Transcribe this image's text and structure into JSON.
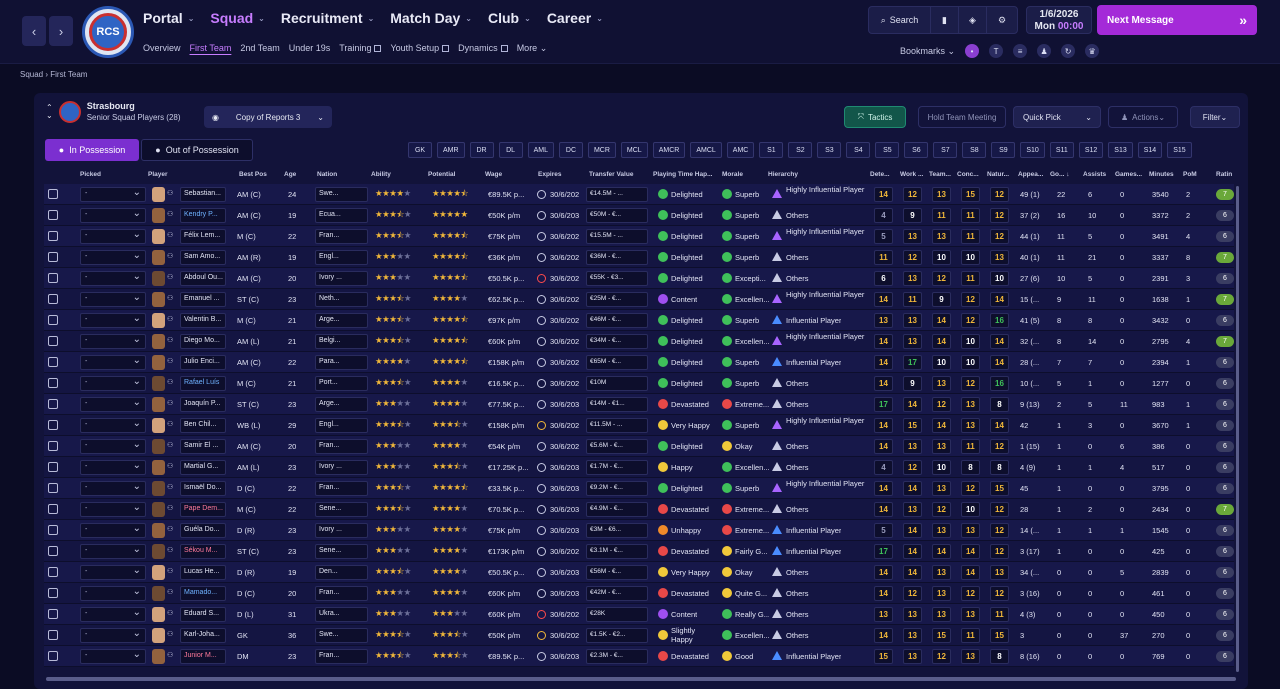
{
  "nav": {
    "back": "‹",
    "forward": "›",
    "badge": "RCS",
    "items": [
      {
        "label": "Portal",
        "active": false
      },
      {
        "label": "Squad",
        "active": true
      },
      {
        "label": "Recruitment",
        "active": false
      },
      {
        "label": "Match Day",
        "active": false
      },
      {
        "label": "Club",
        "active": false
      },
      {
        "label": "Career",
        "active": false
      }
    ],
    "sub": [
      {
        "label": "Overview"
      },
      {
        "label": "First Team",
        "active": true
      },
      {
        "label": "2nd Team"
      },
      {
        "label": "Under 19s"
      },
      {
        "label": "Training",
        "ext": true
      },
      {
        "label": "Youth Setup",
        "ext": true
      },
      {
        "label": "Dynamics",
        "ext": true
      },
      {
        "label": "More ⌄"
      }
    ]
  },
  "toolbar": {
    "search": "Search",
    "date": "1/6/2026",
    "day": "Mon",
    "time": "00:00",
    "next_message": "Next Message",
    "bookmarks": "Bookmarks"
  },
  "breadcrumb": "Squad › First Team",
  "team": {
    "name": "Strasbourg",
    "subtitle": "Senior Squad Players (28)",
    "view": "Copy of Reports 3"
  },
  "buttons": {
    "tactics": "Tactics",
    "meeting": "Hold Team Meeting",
    "quick_pick": "Quick Pick",
    "actions": "Actions",
    "filter": "Filter"
  },
  "possession": {
    "in": "In Possession",
    "out": "Out of Possession"
  },
  "positions": [
    "GK",
    "AMR",
    "DR",
    "DL",
    "AML",
    "DC",
    "MCR",
    "MCL",
    "AMCR",
    "AMCL",
    "AMC",
    "S1",
    "S2",
    "S3",
    "S4",
    "S5",
    "S6",
    "S7",
    "S8",
    "S9",
    "S10",
    "S11",
    "S12",
    "S13",
    "S14",
    "S15"
  ],
  "columns": {
    "picked": "Picked",
    "player": "Player",
    "best_pos": "Best Pos",
    "age": "Age",
    "nation": "Nation",
    "ability": "Ability",
    "potential": "Potential",
    "wage": "Wage",
    "expires": "Expires",
    "transfer": "Transfer Value",
    "playing_time": "Playing Time Hap...",
    "morale": "Morale",
    "hierarchy": "Hierarchy",
    "det": "Dete...",
    "work": "Work ...",
    "team": "Team...",
    "conc": "Conc...",
    "nat": "Natur...",
    "apps": "Appea...",
    "goals": "Go... ↓",
    "assists": "Assists",
    "games": "Games...",
    "minutes": "Minutes",
    "pom": "PoM",
    "rating": "Ratin"
  },
  "players": [
    {
      "picked": "-",
      "name": "Sebastian...",
      "style": "",
      "pos": "AM (C)",
      "age": "24",
      "nation": "Swe...",
      "ab": 4,
      "pot": 4.5,
      "wage": "€89.5K p...",
      "exp": "30/6/202",
      "exp_c": "",
      "tv": "€14.5M - ...",
      "pt": "Delighted",
      "pt_c": "g",
      "mor": "Superb",
      "mor_c": "g",
      "hier": "Highly Influential Player",
      "hier_c": "pu",
      "det": "14",
      "work": "12",
      "team": "13",
      "conc": "15",
      "nat": "12",
      "apps": "49 (1)",
      "goals": "22",
      "assists": "6",
      "games": "0",
      "minutes": "3540",
      "pom": "2",
      "rating": "7",
      "rate_g": true
    },
    {
      "picked": "-",
      "name": "Kendry P...",
      "style": "loan",
      "pos": "AM (C)",
      "age": "19",
      "nation": "Ecua...",
      "ab": 3.5,
      "pot": 5,
      "wage": "€50K p/m",
      "exp": "30/6/203",
      "exp_c": "",
      "tv": "€50M - €...",
      "pt": "Delighted",
      "pt_c": "g",
      "mor": "Superb",
      "mor_c": "g",
      "hier": "Others",
      "hier_c": "",
      "det": "4",
      "work": "9",
      "team": "11",
      "conc": "11",
      "nat": "12",
      "apps": "37 (2)",
      "goals": "16",
      "assists": "10",
      "games": "0",
      "minutes": "3372",
      "pom": "2",
      "rating": "6",
      "rate_g": false
    },
    {
      "picked": "-",
      "name": "Félix Lem...",
      "style": "",
      "pos": "M (C)",
      "age": "22",
      "nation": "Fran...",
      "ab": 3.5,
      "pot": 4.5,
      "wage": "€75K p/m",
      "exp": "30/6/202",
      "exp_c": "",
      "tv": "€15.5M - ...",
      "pt": "Delighted",
      "pt_c": "g",
      "mor": "Superb",
      "mor_c": "g",
      "hier": "Highly Influential Player",
      "hier_c": "pu",
      "det": "5",
      "work": "13",
      "team": "13",
      "conc": "11",
      "nat": "12",
      "apps": "44 (1)",
      "goals": "11",
      "assists": "5",
      "games": "0",
      "minutes": "3491",
      "pom": "4",
      "rating": "6",
      "rate_g": false
    },
    {
      "picked": "-",
      "name": "Sam Amo...",
      "style": "",
      "pos": "AM (R)",
      "age": "19",
      "nation": "Engl...",
      "ab": 3,
      "pot": 4.5,
      "wage": "€36K p/m",
      "exp": "30/6/202",
      "exp_c": "",
      "tv": "€36M - €...",
      "pt": "Delighted",
      "pt_c": "g",
      "mor": "Superb",
      "mor_c": "g",
      "hier": "Others",
      "hier_c": "",
      "det": "11",
      "work": "12",
      "team": "10",
      "conc": "10",
      "nat": "13",
      "apps": "40 (1)",
      "goals": "11",
      "assists": "21",
      "games": "0",
      "minutes": "3337",
      "pom": "8",
      "rating": "7",
      "rate_g": true
    },
    {
      "picked": "-",
      "name": "Abdoul Ou...",
      "style": "",
      "pos": "AM (C)",
      "age": "20",
      "nation": "Ivory ...",
      "ab": 3,
      "pot": 4.5,
      "wage": "€50.5K p...",
      "exp": "30/6/202",
      "exp_c": "r",
      "tv": "€55K - €3...",
      "pt": "Delighted",
      "pt_c": "g",
      "mor": "Excepti...",
      "mor_c": "g",
      "hier": "Others",
      "hier_c": "",
      "det": "6",
      "work": "13",
      "team": "12",
      "conc": "11",
      "nat": "10",
      "apps": "27 (6)",
      "goals": "10",
      "assists": "5",
      "games": "0",
      "minutes": "2391",
      "pom": "3",
      "rating": "6",
      "rate_g": false
    },
    {
      "picked": "-",
      "name": "Emanuel ...",
      "style": "",
      "pos": "ST (C)",
      "age": "23",
      "nation": "Neth...",
      "ab": 3.5,
      "pot": 4,
      "wage": "€62.5K p...",
      "exp": "30/6/202",
      "exp_c": "",
      "tv": "€25M - €...",
      "pt": "Content",
      "pt_c": "pu",
      "mor": "Excellen...",
      "mor_c": "g",
      "hier": "Highly Influential Player",
      "hier_c": "pu",
      "det": "14",
      "work": "11",
      "team": "9",
      "conc": "12",
      "nat": "14",
      "apps": "15 (...",
      "goals": "9",
      "assists": "11",
      "games": "0",
      "minutes": "1638",
      "pom": "1",
      "rating": "7",
      "rate_g": true
    },
    {
      "picked": "-",
      "name": "Valentin B...",
      "style": "",
      "pos": "M (C)",
      "age": "21",
      "nation": "Arge...",
      "ab": 3.5,
      "pot": 4.5,
      "wage": "€97K p/m",
      "exp": "30/6/202",
      "exp_c": "",
      "tv": "€46M - €...",
      "pt": "Delighted",
      "pt_c": "g",
      "mor": "Superb",
      "mor_c": "g",
      "hier": "Influential Player",
      "hier_c": "bl",
      "det": "13",
      "work": "13",
      "team": "14",
      "conc": "12",
      "nat": "16",
      "apps": "41 (5)",
      "goals": "8",
      "assists": "8",
      "games": "0",
      "minutes": "3432",
      "pom": "0",
      "rating": "6",
      "rate_g": false
    },
    {
      "picked": "-",
      "name": "Diego Mo...",
      "style": "",
      "pos": "AM (L)",
      "age": "21",
      "nation": "Belgi...",
      "ab": 3.5,
      "pot": 4.5,
      "wage": "€60K p/m",
      "exp": "30/6/202",
      "exp_c": "",
      "tv": "€34M - €...",
      "pt": "Delighted",
      "pt_c": "g",
      "mor": "Excellen...",
      "mor_c": "g",
      "hier": "Highly Influential Player",
      "hier_c": "pu",
      "det": "14",
      "work": "13",
      "team": "14",
      "conc": "10",
      "nat": "14",
      "apps": "32 (...",
      "goals": "8",
      "assists": "14",
      "games": "0",
      "minutes": "2795",
      "pom": "4",
      "rating": "7",
      "rate_g": true
    },
    {
      "picked": "-",
      "name": "Julio Enci...",
      "style": "",
      "pos": "AM (C)",
      "age": "22",
      "nation": "Para...",
      "ab": 4,
      "pot": 4.5,
      "wage": "€158K p/m",
      "exp": "30/6/202",
      "exp_c": "",
      "tv": "€65M - €...",
      "pt": "Delighted",
      "pt_c": "g",
      "mor": "Superb",
      "mor_c": "g",
      "hier": "Influential Player",
      "hier_c": "bl",
      "det": "14",
      "work": "17",
      "team": "10",
      "conc": "10",
      "nat": "14",
      "apps": "28 (...",
      "goals": "7",
      "assists": "7",
      "games": "0",
      "minutes": "2394",
      "pom": "1",
      "rating": "6",
      "rate_g": false
    },
    {
      "picked": "-",
      "name": "Rafael Luís",
      "style": "loan",
      "pos": "M (C)",
      "age": "21",
      "nation": "Port...",
      "ab": 3.5,
      "pot": 4,
      "wage": "€16.5K p...",
      "exp": "30/6/202",
      "exp_c": "",
      "tv": "€10M",
      "pt": "Delighted",
      "pt_c": "g",
      "mor": "Superb",
      "mor_c": "g",
      "hier": "Others",
      "hier_c": "",
      "det": "14",
      "work": "9",
      "team": "13",
      "conc": "12",
      "nat": "16",
      "apps": "10 (...",
      "goals": "5",
      "assists": "1",
      "games": "0",
      "minutes": "1277",
      "pom": "0",
      "rating": "6",
      "rate_g": false
    },
    {
      "picked": "-",
      "name": "Joaquín P...",
      "style": "",
      "pos": "ST (C)",
      "age": "23",
      "nation": "Arge...",
      "ab": 3,
      "pot": 4,
      "wage": "€77.5K p...",
      "exp": "30/6/203",
      "exp_c": "",
      "tv": "€14M - €1...",
      "pt": "Devastated",
      "pt_c": "rd",
      "mor": "Extreme...",
      "mor_c": "rd",
      "hier": "Others",
      "hier_c": "",
      "det": "17",
      "work": "14",
      "team": "12",
      "conc": "13",
      "nat": "8",
      "apps": "9 (13)",
      "goals": "2",
      "assists": "5",
      "games": "11",
      "minutes": "983",
      "pom": "1",
      "rating": "6",
      "rate_g": false
    },
    {
      "picked": "-",
      "name": "Ben Chil...",
      "style": "",
      "pos": "WB (L)",
      "age": "29",
      "nation": "Engl...",
      "ab": 3.5,
      "pot": 3.5,
      "wage": "€158K p/m",
      "exp": "30/6/202",
      "exp_c": "w",
      "tv": "€11.5M - ...",
      "pt": "Very Happy",
      "pt_c": "y",
      "mor": "Superb",
      "mor_c": "g",
      "hier": "Highly Influential Player",
      "hier_c": "pu",
      "det": "14",
      "work": "15",
      "team": "14",
      "conc": "13",
      "nat": "14",
      "apps": "42",
      "goals": "1",
      "assists": "3",
      "games": "0",
      "minutes": "3670",
      "pom": "1",
      "rating": "6",
      "rate_g": false
    },
    {
      "picked": "-",
      "name": "Samir El ...",
      "style": "",
      "pos": "AM (C)",
      "age": "20",
      "nation": "Fran...",
      "ab": 3,
      "pot": 4,
      "wage": "€54K p/m",
      "exp": "30/6/202",
      "exp_c": "",
      "tv": "€5.6M - €...",
      "pt": "Delighted",
      "pt_c": "g",
      "mor": "Okay",
      "mor_c": "y",
      "hier": "Others",
      "hier_c": "",
      "det": "14",
      "work": "13",
      "team": "13",
      "conc": "11",
      "nat": "12",
      "apps": "1 (15)",
      "goals": "1",
      "assists": "0",
      "games": "6",
      "minutes": "386",
      "pom": "0",
      "rating": "6",
      "rate_g": false
    },
    {
      "picked": "-",
      "name": "Martial G...",
      "style": "",
      "pos": "AM (L)",
      "age": "23",
      "nation": "Ivory ...",
      "ab": 3,
      "pot": 3.5,
      "wage": "€17.25K p...",
      "exp": "30/6/203",
      "exp_c": "",
      "tv": "€1.7M - €...",
      "pt": "Happy",
      "pt_c": "y",
      "mor": "Excellen...",
      "mor_c": "g",
      "hier": "Others",
      "hier_c": "",
      "det": "4",
      "work": "12",
      "team": "10",
      "conc": "8",
      "nat": "8",
      "apps": "4 (9)",
      "goals": "1",
      "assists": "1",
      "games": "4",
      "minutes": "517",
      "pom": "0",
      "rating": "6",
      "rate_g": false
    },
    {
      "picked": "-",
      "name": "Ismaël Do...",
      "style": "",
      "pos": "D (C)",
      "age": "22",
      "nation": "Fran...",
      "ab": 3.5,
      "pot": 4.5,
      "wage": "€33.5K p...",
      "exp": "30/6/203",
      "exp_c": "",
      "tv": "€9.2M - €...",
      "pt": "Delighted",
      "pt_c": "g",
      "mor": "Superb",
      "mor_c": "g",
      "hier": "Highly Influential Player",
      "hier_c": "pu",
      "det": "14",
      "work": "14",
      "team": "13",
      "conc": "12",
      "nat": "15",
      "apps": "45",
      "goals": "1",
      "assists": "0",
      "games": "0",
      "minutes": "3795",
      "pom": "0",
      "rating": "6",
      "rate_g": false
    },
    {
      "picked": "-",
      "name": "Pape Dem...",
      "style": "out",
      "pos": "M (C)",
      "age": "22",
      "nation": "Sene...",
      "ab": 3.5,
      "pot": 4,
      "wage": "€70.5K p...",
      "exp": "30/6/203",
      "exp_c": "",
      "tv": "€4.9M - €...",
      "pt": "Devastated",
      "pt_c": "rd",
      "mor": "Extreme...",
      "mor_c": "rd",
      "hier": "Others",
      "hier_c": "",
      "det": "14",
      "work": "13",
      "team": "12",
      "conc": "10",
      "nat": "12",
      "apps": "28",
      "goals": "1",
      "assists": "2",
      "games": "0",
      "minutes": "2434",
      "pom": "0",
      "rating": "7",
      "rate_g": true
    },
    {
      "picked": "-",
      "name": "Guéla Do...",
      "style": "",
      "pos": "D (R)",
      "age": "23",
      "nation": "Ivory ...",
      "ab": 3,
      "pot": 4,
      "wage": "€75K p/m",
      "exp": "30/6/203",
      "exp_c": "",
      "tv": "€3M - €6...",
      "pt": "Unhappy",
      "pt_c": "o",
      "mor": "Extreme...",
      "mor_c": "rd",
      "hier": "Influential Player",
      "hier_c": "bl",
      "det": "5",
      "work": "14",
      "team": "13",
      "conc": "13",
      "nat": "12",
      "apps": "14 (...",
      "goals": "1",
      "assists": "1",
      "games": "1",
      "minutes": "1545",
      "pom": "0",
      "rating": "6",
      "rate_g": false
    },
    {
      "picked": "-",
      "name": "Sékou M...",
      "style": "out",
      "pos": "ST (C)",
      "age": "23",
      "nation": "Sene...",
      "ab": 3,
      "pot": 4,
      "wage": "€173K p/m",
      "exp": "30/6/202",
      "exp_c": "",
      "tv": "€3.1M - €...",
      "pt": "Devastated",
      "pt_c": "rd",
      "mor": "Fairly G...",
      "mor_c": "y",
      "hier": "Influential Player",
      "hier_c": "bl",
      "det": "17",
      "work": "14",
      "team": "14",
      "conc": "14",
      "nat": "12",
      "apps": "3 (17)",
      "goals": "1",
      "assists": "0",
      "games": "0",
      "minutes": "425",
      "pom": "0",
      "rating": "6",
      "rate_g": false
    },
    {
      "picked": "-",
      "name": "Lucas He...",
      "style": "",
      "pos": "D (R)",
      "age": "19",
      "nation": "Den...",
      "ab": 3.5,
      "pot": 4,
      "wage": "€50.5K p...",
      "exp": "30/6/203",
      "exp_c": "",
      "tv": "€56M - €...",
      "pt": "Very Happy",
      "pt_c": "y",
      "mor": "Okay",
      "mor_c": "y",
      "hier": "Others",
      "hier_c": "",
      "det": "14",
      "work": "14",
      "team": "13",
      "conc": "14",
      "nat": "13",
      "apps": "34 (...",
      "goals": "0",
      "assists": "0",
      "games": "5",
      "minutes": "2839",
      "pom": "0",
      "rating": "6",
      "rate_g": false
    },
    {
      "picked": "-",
      "name": "Mamado...",
      "style": "loan",
      "pos": "D (C)",
      "age": "20",
      "nation": "Fran...",
      "ab": 3,
      "pot": 4,
      "wage": "€60K p/m",
      "exp": "30/6/203",
      "exp_c": "",
      "tv": "€42M - €...",
      "pt": "Devastated",
      "pt_c": "rd",
      "mor": "Quite G...",
      "mor_c": "y",
      "hier": "Others",
      "hier_c": "",
      "det": "14",
      "work": "12",
      "team": "13",
      "conc": "12",
      "nat": "12",
      "apps": "3 (16)",
      "goals": "0",
      "assists": "0",
      "games": "0",
      "minutes": "461",
      "pom": "0",
      "rating": "6",
      "rate_g": false
    },
    {
      "picked": "-",
      "name": "Eduard S...",
      "style": "",
      "pos": "D (L)",
      "age": "31",
      "nation": "Ukra...",
      "ab": 3,
      "pot": 3,
      "wage": "€60K p/m",
      "exp": "30/6/202",
      "exp_c": "r",
      "tv": "€28K",
      "pt": "Content",
      "pt_c": "pu",
      "mor": "Really G...",
      "mor_c": "g",
      "hier": "Others",
      "hier_c": "",
      "det": "13",
      "work": "13",
      "team": "13",
      "conc": "13",
      "nat": "11",
      "apps": "4 (3)",
      "goals": "0",
      "assists": "0",
      "games": "0",
      "minutes": "450",
      "pom": "0",
      "rating": "6",
      "rate_g": false
    },
    {
      "picked": "-",
      "name": "Karl-Joha...",
      "style": "",
      "pos": "GK",
      "age": "36",
      "nation": "Swe...",
      "ab": 3.5,
      "pot": 3.5,
      "wage": "€50K p/m",
      "exp": "30/6/202",
      "exp_c": "w",
      "tv": "€1.5K - €2...",
      "pt": "Slightly Happy",
      "pt_c": "y",
      "mor": "Excellen...",
      "mor_c": "g",
      "hier": "Others",
      "hier_c": "",
      "det": "14",
      "work": "13",
      "team": "15",
      "conc": "11",
      "nat": "15",
      "apps": "3",
      "goals": "0",
      "assists": "0",
      "games": "37",
      "minutes": "270",
      "pom": "0",
      "rating": "6",
      "rate_g": false
    },
    {
      "picked": "-",
      "name": "Junior M...",
      "style": "out",
      "pos": "DM",
      "age": "23",
      "nation": "Fran...",
      "ab": 3.5,
      "pot": 3.5,
      "wage": "€89.5K p...",
      "exp": "30/6/203",
      "exp_c": "",
      "tv": "€2.3M - €...",
      "pt": "Devastated",
      "pt_c": "rd",
      "mor": "Good",
      "mor_c": "y",
      "hier": "Influential Player",
      "hier_c": "bl",
      "det": "15",
      "work": "13",
      "team": "12",
      "conc": "13",
      "nat": "8",
      "apps": "8 (16)",
      "goals": "0",
      "assists": "0",
      "games": "0",
      "minutes": "769",
      "pom": "0",
      "rating": "6",
      "rate_g": false
    }
  ]
}
